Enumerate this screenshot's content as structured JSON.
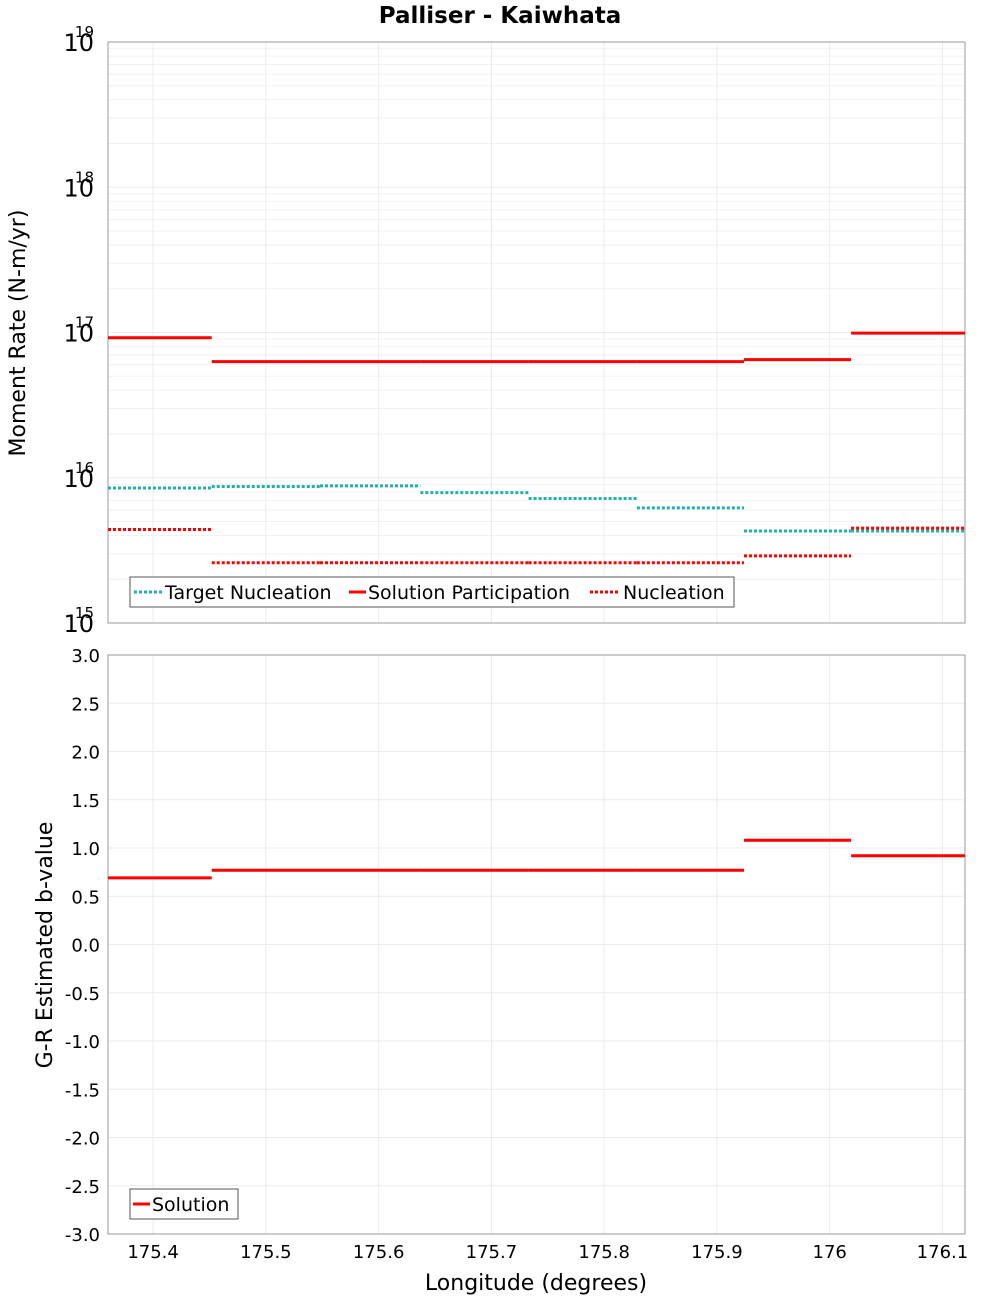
{
  "chart_data": [
    {
      "type": "line",
      "title": "Palliser - Kaiwhata",
      "xlabel": "Longitude (degrees)",
      "ylabel": "Moment Rate (N-m/yr)",
      "yscale": "log",
      "ylim": [
        1000000000000000.0,
        1e+19
      ],
      "xlim": [
        175.36,
        176.12
      ],
      "y_ticks": [
        {
          "base": "10",
          "exp": "15",
          "value": 1000000000000000.0
        },
        {
          "base": "10",
          "exp": "16",
          "value": 1e+16
        },
        {
          "base": "10",
          "exp": "17",
          "value": 1e+17
        },
        {
          "base": "10",
          "exp": "18",
          "value": 1e+18
        },
        {
          "base": "10",
          "exp": "19",
          "value": 1e+19
        }
      ],
      "x_edges": [
        175.36,
        175.452,
        175.548,
        175.637,
        175.733,
        175.829,
        175.924,
        176.019,
        176.12
      ],
      "legend_position": "bottom-left",
      "series": [
        {
          "name": "Target Nucleation",
          "style": "dotted",
          "color": "#20b2aa",
          "values": [
            8500000000000000.0,
            8700000000000000.0,
            8800000000000000.0,
            7900000000000000.0,
            7200000000000000.0,
            6200000000000000.0,
            4300000000000000.0,
            4300000000000000.0
          ]
        },
        {
          "name": "Solution Participation",
          "style": "solid",
          "color": "#ff0000",
          "values": [
            9.2e+16,
            6.3e+16,
            6.3e+16,
            6.3e+16,
            6.3e+16,
            6.3e+16,
            6.5e+16,
            9.9e+16
          ]
        },
        {
          "name": "Nucleation",
          "style": "dotted",
          "color": "#ff0000",
          "values": [
            4400000000000000.0,
            2600000000000000.0,
            2600000000000000.0,
            2600000000000000.0,
            2600000000000000.0,
            2600000000000000.0,
            2900000000000000.0,
            4500000000000000.0
          ]
        }
      ]
    },
    {
      "type": "line",
      "xlabel": "Longitude (degrees)",
      "ylabel": "G-R Estimated b-value",
      "ylim": [
        -3.0,
        3.0
      ],
      "xlim": [
        175.36,
        176.12
      ],
      "y_ticks": [
        "-3.0",
        "-2.5",
        "-2.0",
        "-1.5",
        "-1.0",
        "-0.5",
        "0.0",
        "0.5",
        "1.0",
        "1.5",
        "2.0",
        "2.5",
        "3.0"
      ],
      "x_ticks": [
        "175.4",
        "175.5",
        "175.6",
        "175.7",
        "175.8",
        "175.9",
        "176",
        "176.1"
      ],
      "x_edges": [
        175.36,
        175.452,
        175.548,
        175.637,
        175.733,
        175.829,
        175.924,
        176.019,
        176.12
      ],
      "legend_position": "bottom-left",
      "series": [
        {
          "name": "Solution",
          "style": "solid",
          "color": "#ff0000",
          "values": [
            0.69,
            0.77,
            0.77,
            0.77,
            0.77,
            0.77,
            1.08,
            0.92
          ]
        }
      ]
    }
  ]
}
